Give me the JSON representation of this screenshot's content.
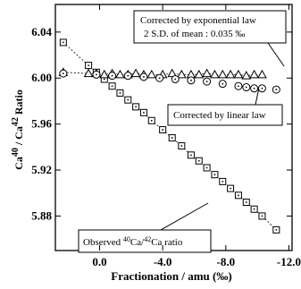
{
  "chart_data": {
    "type": "scatter",
    "xlabel": "Fractionation / amu (‰)",
    "ylabel_parts": [
      {
        "text": "Ca"
      },
      {
        "text": "40",
        "sup": true
      },
      {
        "text": " / Ca"
      },
      {
        "text": "42",
        "sup": true
      },
      {
        "text": " Ratio"
      }
    ],
    "xlim": [
      2.8,
      -12.2
    ],
    "ylim": [
      5.85,
      6.064
    ],
    "xticks": [
      {
        "value": 0,
        "label": "0.0"
      },
      {
        "value": -4,
        "label": "-4.0"
      },
      {
        "value": -8,
        "label": "-8.0"
      },
      {
        "value": -12,
        "label": "-12.0"
      }
    ],
    "yticks": [
      5.88,
      5.92,
      5.96,
      {
        "value": 6,
        "label": "6.00"
      },
      6.04
    ],
    "series": [
      {
        "name": "Observed",
        "marker": "square",
        "color": "#000",
        "line": "dashed",
        "x": [
          2.3,
          0.7,
          0.2,
          -0.3,
          -0.8,
          -1.3,
          -1.8,
          -2.3,
          -2.8,
          -3.3,
          -4.0,
          -4.6,
          -5.2,
          -5.8,
          -6.3,
          -6.8,
          -7.3,
          -7.8,
          -8.3,
          -8.8,
          -9.3,
          -9.8,
          -10.3,
          -11.2
        ],
        "values": [
          6.031,
          6.011,
          6.005,
          5.999,
          5.993,
          5.987,
          5.981,
          5.975,
          5.97,
          5.963,
          5.955,
          5.948,
          5.941,
          5.933,
          5.928,
          5.922,
          5.916,
          5.91,
          5.904,
          5.898,
          5.892,
          5.886,
          5.88,
          5.868
        ]
      },
      {
        "name": "Exponential",
        "marker": "triangle",
        "color": "#000",
        "line": "dashed",
        "x": [
          2.3,
          0.7,
          0.2,
          -0.3,
          -0.8,
          -1.3,
          -1.8,
          -2.3,
          -2.8,
          -3.3,
          -4.0,
          -4.6,
          -5.2,
          -5.8,
          -6.3,
          -6.8,
          -7.3,
          -7.8,
          -8.3,
          -8.8,
          -9.3,
          -9.8,
          -10.3
        ],
        "values": [
          6.005,
          6.004,
          6.004,
          6.003,
          6.004,
          6.003,
          6.003,
          6.004,
          6.003,
          6.003,
          6.003,
          6.004,
          6.003,
          6.003,
          6.003,
          6.004,
          6.003,
          6.003,
          6.003,
          6.003,
          6.002,
          6.003,
          6.003
        ]
      },
      {
        "name": "Linear",
        "marker": "circle",
        "color": "#000",
        "line": "none",
        "x": [
          2.3,
          0.2,
          -0.8,
          -1.8,
          -2.8,
          -3.8,
          -4.8,
          -5.8,
          -6.8,
          -7.8,
          -8.8,
          -9.3,
          -9.8,
          -10.3,
          -11.2
        ],
        "values": [
          6.004,
          6.003,
          6.002,
          6.002,
          6.001,
          6.0,
          5.999,
          5.998,
          5.997,
          5.995,
          5.993,
          5.992,
          5.991,
          5.991,
          5.99
        ]
      }
    ],
    "annotations": {
      "exponential": [
        "Corrected by exponential law",
        "2 S.D. of mean : 0.035 ‰"
      ],
      "linear": "Corrected by linear law",
      "observed_parts": [
        {
          "text": "Observed "
        },
        {
          "text": "40",
          "sup": true
        },
        {
          "text": "Ca/"
        },
        {
          "text": "42",
          "sup": true
        },
        {
          "text": "Ca ratio"
        }
      ]
    }
  }
}
